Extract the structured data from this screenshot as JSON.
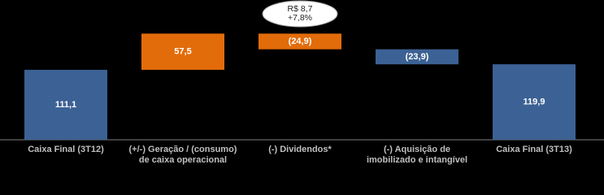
{
  "chart_data": {
    "type": "waterfall",
    "categories": [
      "Caixa Final (3T12)",
      "(+/-) Geração / (consumo)\nde caixa operacional",
      "(-) Dividendos*",
      "(-) Aquisição de\nimobilizado e intangível",
      "Caixa Final (3T13)"
    ],
    "values": [
      111.1,
      57.5,
      -24.9,
      -23.9,
      119.9
    ],
    "value_labels": [
      "111,1",
      "57,5",
      "(24,9)",
      "(23,9)",
      "119,9"
    ],
    "measure": [
      "total",
      "relative",
      "relative",
      "relative",
      "total"
    ],
    "colors": [
      "#3c6194",
      "#e36c0a",
      "#e36c0a",
      "#3c6194",
      "#3c6194"
    ],
    "ylim": [
      0,
      222
    ],
    "annotation": "R$ 8,7\n+7,8%"
  }
}
